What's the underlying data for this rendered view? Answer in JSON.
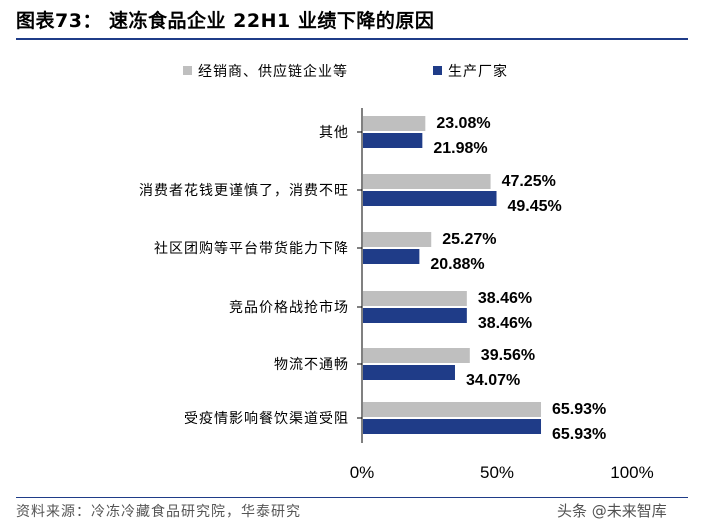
{
  "header": {
    "title": "图表73：  速冻食品企业 22H1 业绩下降的原因"
  },
  "footer": {
    "source": "资料来源：冷冻冷藏食品研究院，华泰研究",
    "watermark": "头条 @未来智库"
  },
  "colors": {
    "series1": "#bfbfbf",
    "series2": "#1f3c88",
    "rule": "#1f3c88"
  },
  "chart_data": {
    "type": "bar",
    "orientation": "horizontal",
    "categories": [
      "其他",
      "消费者花钱更谨慎了，消费不旺",
      "社区团购等平台带货能力下降",
      "竞品价格战抢市场",
      "物流不通畅",
      "受疫情影响餐饮渠道受阻"
    ],
    "series": [
      {
        "name": "经销商、供应链企业等",
        "values": [
          23.08,
          47.25,
          25.27,
          38.46,
          39.56,
          65.93
        ],
        "labels": [
          "23.08%",
          "47.25%",
          "25.27%",
          "38.46%",
          "39.56%",
          "65.93%"
        ]
      },
      {
        "name": "生产厂家",
        "values": [
          21.98,
          49.45,
          20.88,
          38.46,
          34.07,
          65.93
        ],
        "labels": [
          "21.98%",
          "49.45%",
          "20.88%",
          "38.46%",
          "34.07%",
          "65.93%"
        ]
      }
    ],
    "xlim": [
      0,
      100
    ],
    "xticks": [
      0,
      50,
      100
    ],
    "xtick_labels": [
      "0%",
      "50%",
      "100%"
    ],
    "legend": "top-center",
    "grid": false
  }
}
